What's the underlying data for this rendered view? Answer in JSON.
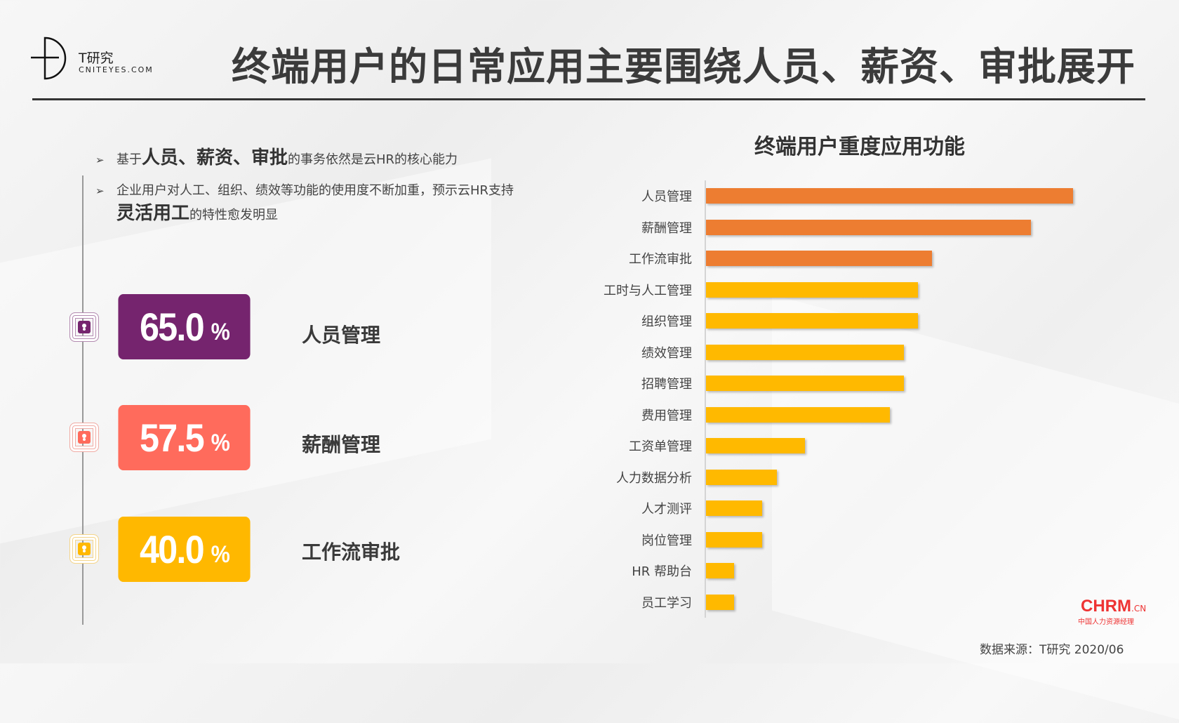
{
  "logo": {
    "name_cn": "T研究",
    "name_en": "CNITEYES.COM"
  },
  "title": "终端用户的日常应用主要围绕人员、薪资、审批展开",
  "bullets": [
    {
      "pre": "基于",
      "bold": "人员、薪资、审批",
      "post": "的事务依然是云HR的核心能力"
    },
    {
      "pre": "企业用户对人工、组织、绩效等功能的使用度不断加重，预示云HR支持",
      "bold": "灵活用工",
      "post": "的特性愈发明显"
    }
  ],
  "stats": [
    {
      "value": "65.0",
      "unit": "%",
      "label": "人员管理",
      "color": "#75246E"
    },
    {
      "value": "57.5",
      "unit": "%",
      "label": "薪酬管理",
      "color": "#FF6B5C"
    },
    {
      "value": "40.0",
      "unit": "%",
      "label": "工作流审批",
      "color": "#FFB800"
    }
  ],
  "chart_data": {
    "type": "bar",
    "orientation": "horizontal",
    "title": "终端用户重度应用功能",
    "categories": [
      "人员管理",
      "薪酬管理",
      "工作流审批",
      "工时与人工管理",
      "组织管理",
      "绩效管理",
      "招聘管理",
      "费用管理",
      "工资单管理",
      "人力数据分析",
      "人才测评",
      "岗位管理",
      "HR 帮助台",
      "员工学习"
    ],
    "values": [
      65.0,
      57.5,
      40.0,
      37.5,
      37.5,
      35.0,
      35.0,
      32.5,
      17.5,
      12.5,
      10.0,
      10.0,
      5.0,
      5.0
    ],
    "unit": "%",
    "highlight_count": 3,
    "colors": {
      "highlight": "#ED7D31",
      "normal": "#FFB900"
    },
    "xlim": [
      0,
      65
    ]
  },
  "source": "数据来源：T研究 2020/06",
  "watermark": {
    "brand": "CHRM",
    "domain": ".CN",
    "tagline": "中国人力资源经理"
  }
}
